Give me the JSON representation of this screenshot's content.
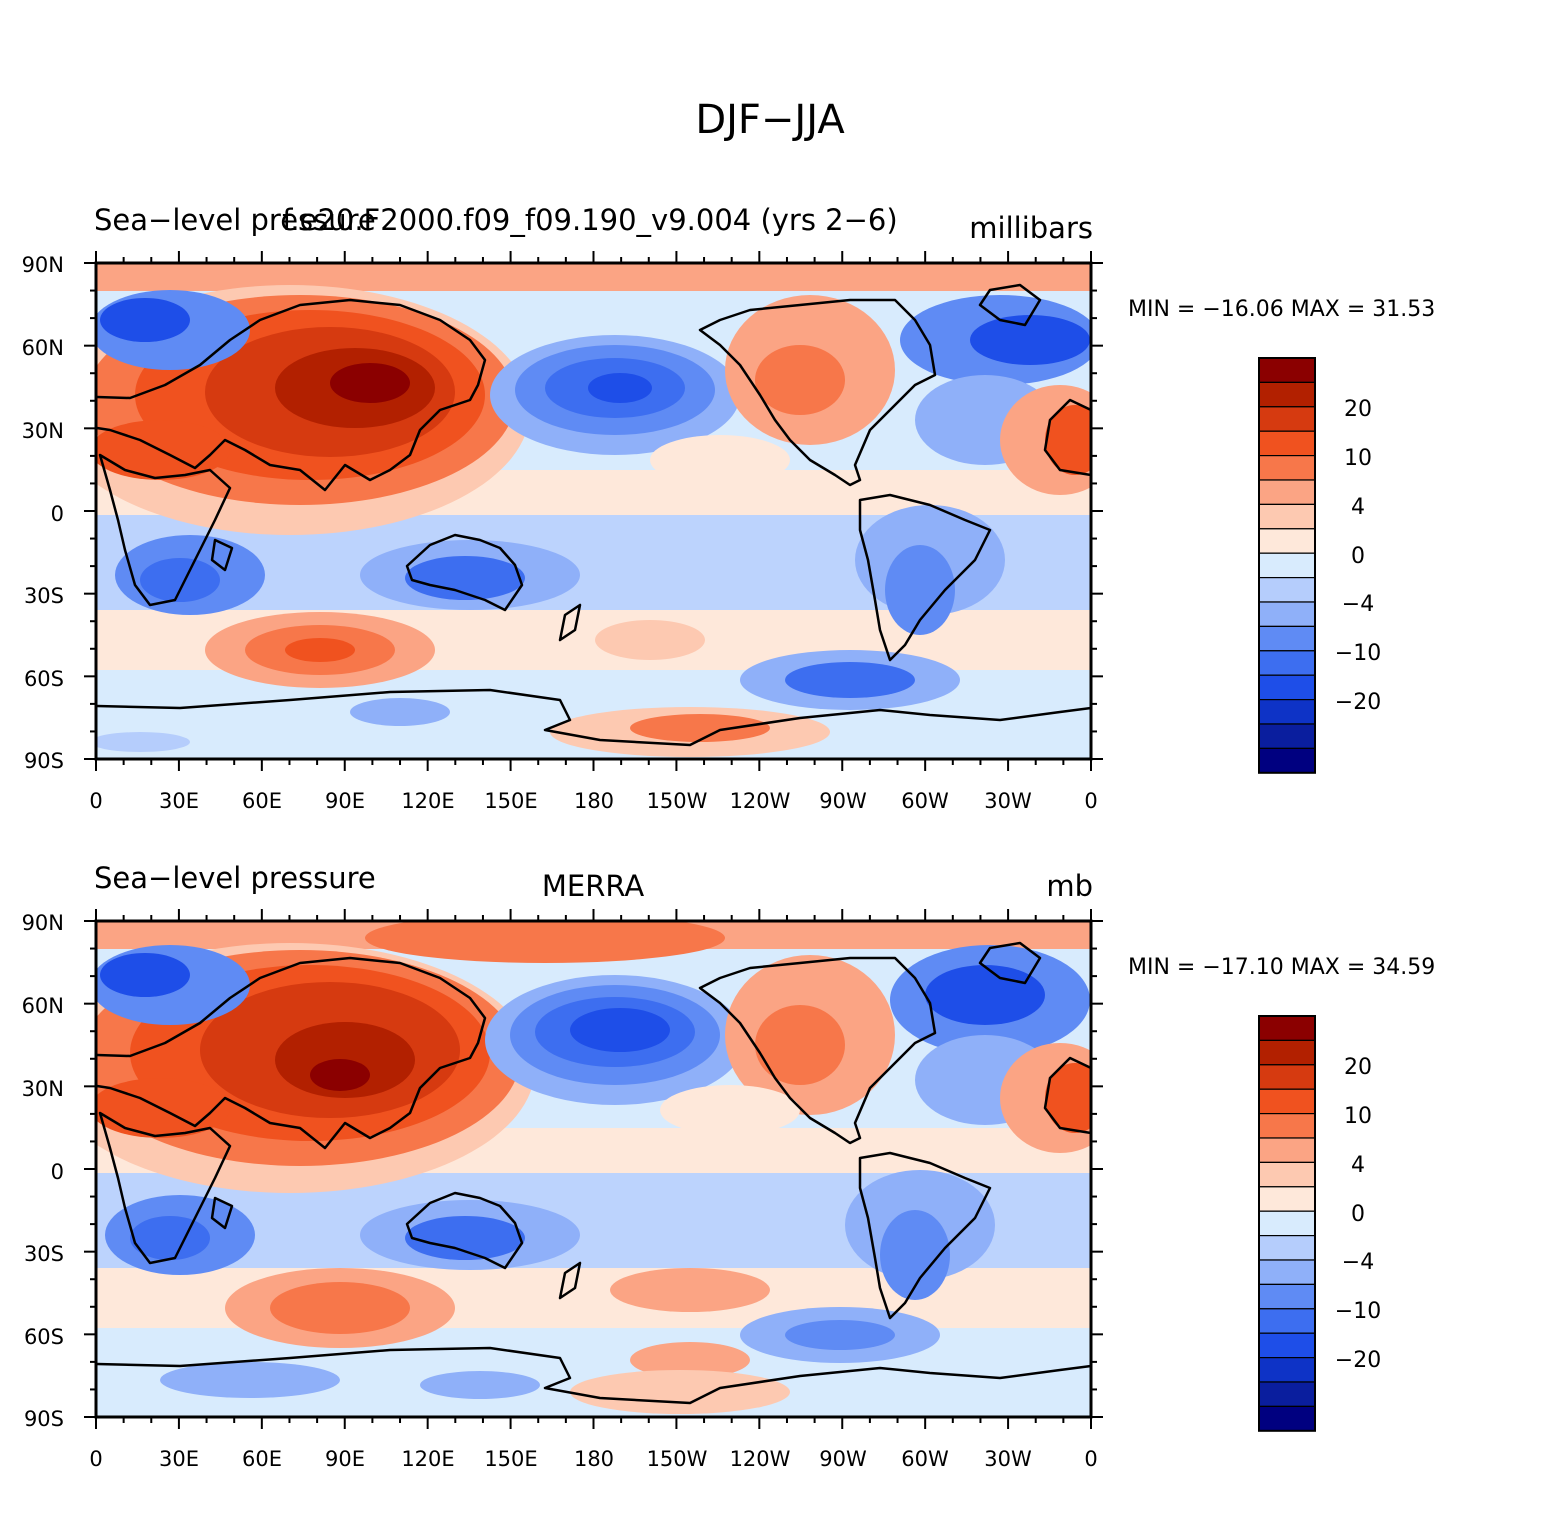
{
  "figure": {
    "title": "DJF−JJA"
  },
  "panels": [
    {
      "left_title": "Sea−level pressure",
      "center_title": "f.e20.F2000.f09_f09.190_v9.004 (yrs 2−6)",
      "right_title": "millibars",
      "min_max": "MIN = −16.06  MAX =   31.53",
      "lat_labels": [
        "90N",
        "60N",
        "30N",
        "0",
        "30S",
        "60S",
        "90S"
      ],
      "lon_labels": [
        "0",
        "30E",
        "60E",
        "90E",
        "120E",
        "150E",
        "180",
        "150W",
        "120W",
        "90W",
        "60W",
        "30W",
        "0"
      ]
    },
    {
      "left_title": "Sea−level pressure",
      "center_title": "MERRA",
      "right_title": "mb",
      "min_max": "MIN = −17.10  MAX =   34.59",
      "lat_labels": [
        "90N",
        "60N",
        "30N",
        "0",
        "30S",
        "60S",
        "90S"
      ],
      "lon_labels": [
        "0",
        "30E",
        "60E",
        "90E",
        "120E",
        "150E",
        "180",
        "150W",
        "120W",
        "90W",
        "60W",
        "30W",
        "0"
      ]
    }
  ],
  "colorbar": {
    "labels": [
      "20",
      "10",
      "4",
      "0",
      "−4",
      "−10",
      "−20"
    ],
    "colors": [
      "#8b0000",
      "#b22000",
      "#d63a10",
      "#f0521f",
      "#f7774a",
      "#fba484",
      "#fdc9b1",
      "#fee8da",
      "#d8ebfd",
      "#b5cdfc",
      "#8fb0f9",
      "#5f8bf4",
      "#3d6ef0",
      "#1e4ee8",
      "#0e33c6",
      "#0a1e9e",
      "#000080"
    ]
  },
  "legend": {
    "positive_color": "#d63a10",
    "negative_color": "#1e4ee8"
  }
}
